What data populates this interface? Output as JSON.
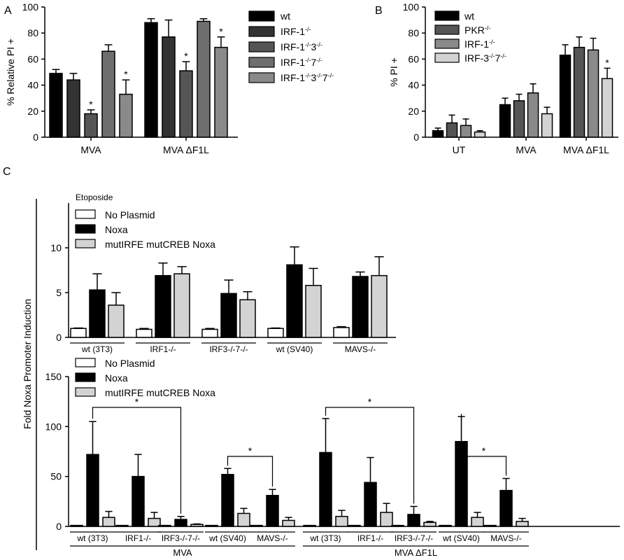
{
  "panel_labels": [
    "A",
    "B",
    "C"
  ],
  "chart_data": [
    {
      "type": "bar",
      "panel": "A",
      "ylabel": "% Relative PI +",
      "ylim": [
        0,
        100
      ],
      "yticks": [
        0,
        20,
        40,
        60,
        80,
        100
      ],
      "categories": [
        "MVA",
        "MVA ΔF1L"
      ],
      "series": [
        {
          "name": "wt",
          "values": [
            49,
            88
          ],
          "errors": [
            3,
            3
          ],
          "color": "#000000",
          "sig": [
            false,
            false
          ]
        },
        {
          "name": "IRF-1-/-",
          "values": [
            44,
            77
          ],
          "errors": [
            5,
            13
          ],
          "color": "#333333",
          "sig": [
            false,
            false
          ]
        },
        {
          "name": "IRF-1-/-3-/-",
          "values": [
            18,
            51
          ],
          "errors": [
            3,
            7
          ],
          "color": "#555555",
          "sig": [
            true,
            true
          ]
        },
        {
          "name": "IRF-1-/-7-/-",
          "values": [
            66,
            89
          ],
          "errors": [
            5,
            2
          ],
          "color": "#6e6e6e",
          "sig": [
            false,
            false
          ]
        },
        {
          "name": "IRF-1-/-3-/-7-/-",
          "values": [
            33,
            69
          ],
          "errors": [
            11,
            8
          ],
          "color": "#8a8a8a",
          "sig": [
            true,
            true
          ]
        }
      ],
      "legend_position": "right"
    },
    {
      "type": "bar",
      "panel": "B",
      "ylabel": "% PI +",
      "ylim": [
        0,
        100
      ],
      "yticks": [
        0,
        20,
        40,
        60,
        80,
        100
      ],
      "categories": [
        "UT",
        "MVA",
        "MVA ΔF1L"
      ],
      "series": [
        {
          "name": "wt",
          "values": [
            5,
            25,
            63
          ],
          "errors": [
            2,
            5,
            8
          ],
          "color": "#000000",
          "sig": [
            false,
            false,
            false
          ]
        },
        {
          "name": "PKR-/-",
          "values": [
            11,
            28,
            69
          ],
          "errors": [
            6,
            5,
            8
          ],
          "color": "#555555",
          "sig": [
            false,
            false,
            false
          ]
        },
        {
          "name": "IRF-1-/-",
          "values": [
            9,
            34,
            67
          ],
          "errors": [
            5,
            7,
            9
          ],
          "color": "#8a8a8a",
          "sig": [
            false,
            false,
            false
          ]
        },
        {
          "name": "IRF-3-/-7-/-",
          "values": [
            4,
            18,
            45
          ],
          "errors": [
            1,
            5,
            8
          ],
          "color": "#d3d3d3",
          "sig": [
            false,
            false,
            true
          ]
        }
      ],
      "legend_position": "top-left"
    },
    {
      "type": "bar",
      "panel": "C-top",
      "title": "Etoposide",
      "ylim": [
        0,
        15
      ],
      "yticks": [
        0,
        5,
        10
      ],
      "categories": [
        "wt (3T3)",
        "IRF1-/-",
        "IRF3-/-7-/-",
        "wt (SV40)",
        "MAVS-/-"
      ],
      "series": [
        {
          "name": "No Plasmid",
          "values": [
            1,
            0.9,
            0.9,
            1,
            1.1
          ],
          "errors": [
            0.05,
            0.1,
            0.1,
            0.05,
            0.1
          ],
          "color": "#ffffff"
        },
        {
          "name": "Noxa",
          "values": [
            5.3,
            6.9,
            4.9,
            8.1,
            6.8
          ],
          "errors": [
            1.8,
            1.4,
            1.5,
            2.0,
            0.5
          ],
          "color": "#000000"
        },
        {
          "name": "mutIRFE mutCREB Noxa",
          "values": [
            3.6,
            7.1,
            4.2,
            5.8,
            6.9
          ],
          "errors": [
            1.4,
            0.8,
            0.9,
            1.9,
            2.1
          ],
          "color": "#d3d3d3"
        }
      ],
      "legend_position": "top-left"
    },
    {
      "type": "bar",
      "panel": "C-bottom",
      "ylabel": "Fold Noxa Promoter Induction",
      "ylim": [
        0,
        150
      ],
      "yticks": [
        0,
        50,
        100,
        150
      ],
      "groups": [
        "MVA",
        "MVA ΔF1L"
      ],
      "categories": [
        "wt (3T3)",
        "IRF1-/-",
        "IRF3-/-7-/-",
        "wt (SV40)",
        "MAVS-/-"
      ],
      "series": [
        {
          "name": "No Plasmid",
          "values": [
            [
              1,
              1,
              1,
              1,
              1
            ],
            [
              1,
              1,
              1,
              1,
              1
            ]
          ],
          "errors": [
            [
              0,
              0,
              0,
              0,
              0
            ],
            [
              0,
              0,
              0,
              0,
              0
            ]
          ],
          "color": "#ffffff"
        },
        {
          "name": "Noxa",
          "values": [
            [
              72,
              50,
              7,
              52,
              31
            ],
            [
              74,
              44,
              12,
              85,
              36
            ]
          ],
          "errors": [
            [
              33,
              22,
              3,
              6,
              6
            ],
            [
              34,
              25,
              8,
              25,
              12
            ]
          ],
          "color": "#000000"
        },
        {
          "name": "mutIRFE mutCREB Noxa",
          "values": [
            [
              9,
              8,
              2,
              13,
              6
            ],
            [
              10,
              14,
              4,
              9,
              5
            ]
          ],
          "errors": [
            [
              6,
              6,
              0.5,
              5,
              3
            ],
            [
              6,
              9,
              1,
              5,
              3
            ]
          ],
          "color": "#d3d3d3"
        }
      ],
      "brackets": [
        {
          "group": 0,
          "from": 0,
          "to": 2,
          "label": "*"
        },
        {
          "group": 0,
          "from": 3,
          "to": 4,
          "label": "*"
        },
        {
          "group": 1,
          "from": 0,
          "to": 2,
          "label": "*"
        },
        {
          "group": 1,
          "from": 3,
          "to": 4,
          "label": "*"
        }
      ],
      "legend_position": "top-left"
    }
  ]
}
